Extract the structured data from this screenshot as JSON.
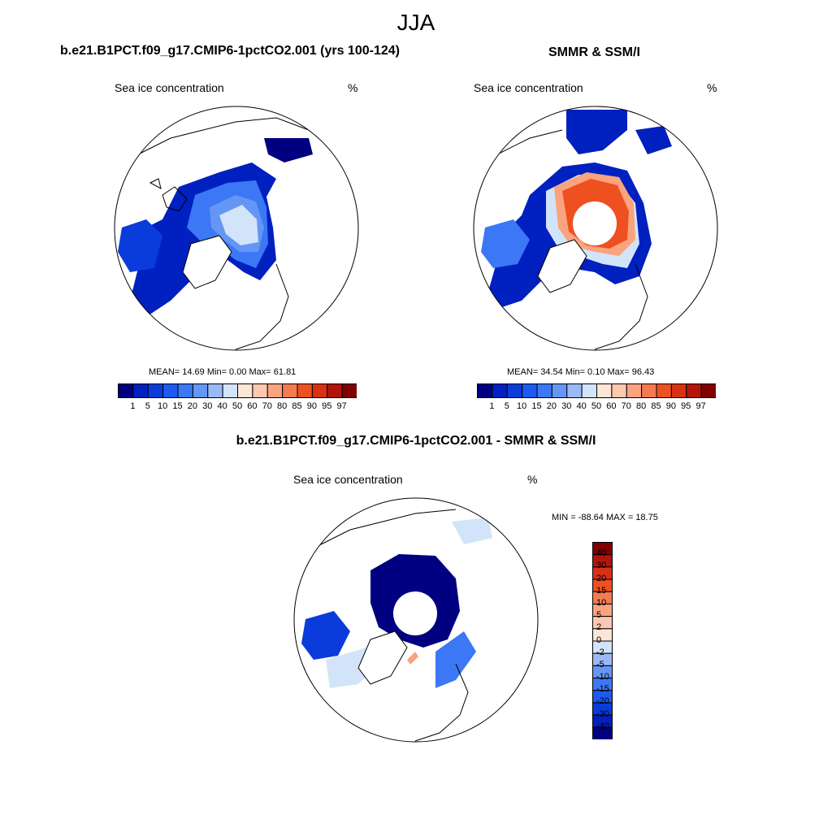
{
  "main_title": "JJA",
  "panels": {
    "model": {
      "title": "b.e21.B1PCT.f09_g17.CMIP6-1pctCO2.001 (yrs 100-124)",
      "variable": "Sea ice concentration",
      "units": "%",
      "stats": "MEAN=  14.69  Min=   0.00  Max=  61.81"
    },
    "obs": {
      "title": "SMMR & SSM/I",
      "variable": "Sea ice concentration",
      "units": "%",
      "stats": "MEAN=  34.54  Min=   0.10  Max=  96.43"
    },
    "diff": {
      "title": "b.e21.B1PCT.f09_g17.CMIP6-1pctCO2.001 - SMMR & SSM/I",
      "variable": "Sea ice concentration",
      "units": "%",
      "stats": "MIN = -88.64 MAX =  18.75"
    }
  },
  "colorbar_conc": {
    "labels": [
      "1",
      "5",
      "10",
      "15",
      "20",
      "30",
      "40",
      "50",
      "60",
      "70",
      "80",
      "85",
      "90",
      "95",
      "97"
    ],
    "colors": [
      "#000080",
      "#0020c0",
      "#0a3cdc",
      "#1e5af0",
      "#3c78f5",
      "#6496f5",
      "#9bbaf5",
      "#d2e4fa",
      "#fde6d6",
      "#fcc8b0",
      "#faa37f",
      "#f57a4f",
      "#ef5020",
      "#d93014",
      "#b4140a",
      "#800000"
    ]
  },
  "colorbar_diff": {
    "labels": [
      "40",
      "30",
      "20",
      "15",
      "10",
      "5",
      "2",
      "0",
      "-2",
      "-5",
      "-10",
      "-15",
      "-20",
      "-30",
      "-40"
    ],
    "colors": [
      "#800000",
      "#b4140a",
      "#d93014",
      "#ef5020",
      "#f57a4f",
      "#faa37f",
      "#fcc8b0",
      "#fde6d6",
      "#d2e4fa",
      "#9bbaf5",
      "#6496f5",
      "#3c78f5",
      "#1e5af0",
      "#0a3cdc",
      "#0020c0",
      "#000080"
    ]
  }
}
